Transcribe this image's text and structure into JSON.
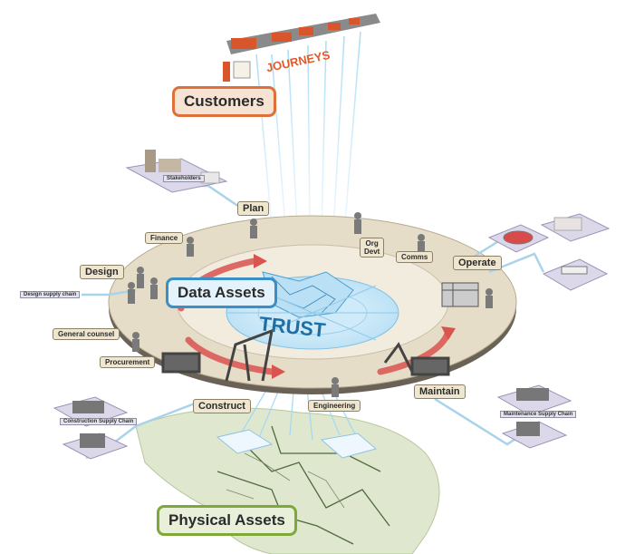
{
  "title_labels": {
    "customers": "Customers",
    "data_assets": "Data Assets",
    "physical_assets": "Physical Assets",
    "journeys": "JOURNEYS",
    "trust": "TRUST"
  },
  "stage_labels": {
    "plan": "Plan",
    "design": "Design",
    "operate": "Operate",
    "construct": "Construct",
    "maintain": "Maintain"
  },
  "function_labels": {
    "finance": "Finance",
    "org_devt": "Org\nDevt",
    "comms": "Comms",
    "general_counsel": "General counsel",
    "procurement": "Procurement",
    "engineering": "Engineering"
  },
  "supply_chain_labels": {
    "stakeholders": "Stakeholders",
    "design_supply_chain": "Design supply chain",
    "construction_supply_chain": "Construction Supply Chain",
    "maintenance_supply_chain": "Maintenance Supply Chain"
  },
  "colors": {
    "customers_border": "#e0703a",
    "data_assets_border": "#3a8fc9",
    "physical_assets_border": "#7ea83a",
    "ring": "#e6ddc9",
    "arrows": "#d9534f",
    "trust_text": "#1d6fa6",
    "data_lines": "#6ec2ec"
  }
}
